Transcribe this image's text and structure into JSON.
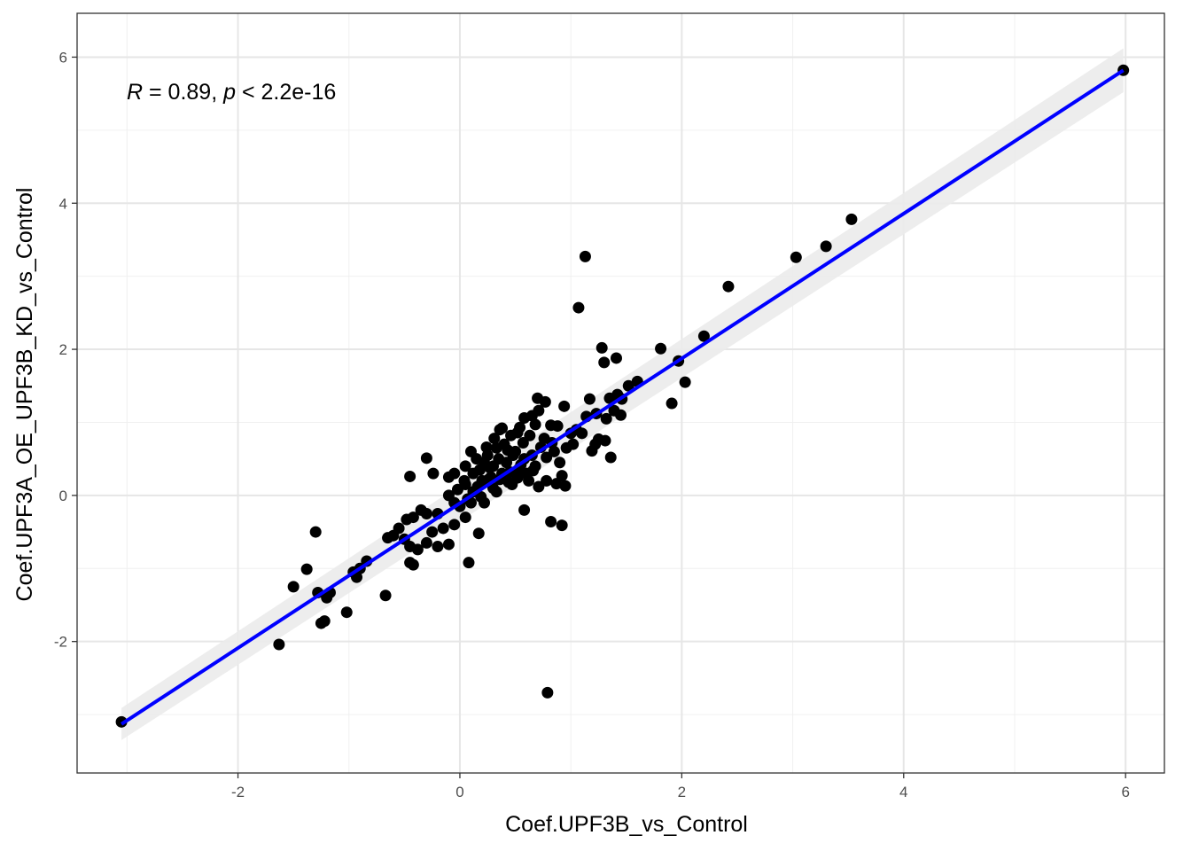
{
  "chart_data": {
    "type": "scatter",
    "xlabel": "Coef.UPF3B_vs_Control",
    "ylabel": "Coef.UPF3A_OE_UPF3B_KD_vs_Control",
    "xlim": [
      -3.45,
      6.35
    ],
    "ylim": [
      -3.8,
      6.6
    ],
    "x_ticks": [
      -2,
      0,
      2,
      4,
      6
    ],
    "y_ticks": [
      -2,
      0,
      2,
      4,
      6
    ],
    "x_tick_labels": [
      "-2",
      "0",
      "2",
      "4",
      "6"
    ],
    "y_tick_labels": [
      "-2",
      "0",
      "2",
      "4",
      "6"
    ],
    "grid": true,
    "annotation": {
      "r_symbol": "R",
      "r_text": " = 0.89, ",
      "p_symbol": "p",
      "p_text": " < 2.2e-16"
    },
    "regression": {
      "color": "#0000ff",
      "ci_color": "#ebebeb",
      "x": [
        -3.05,
        5.98
      ],
      "y": [
        -3.13,
        5.82
      ],
      "ci_halfwidth": [
        0.22,
        0.3
      ]
    },
    "point_color": "#000000",
    "points": [
      [
        5.98,
        5.82
      ],
      [
        -3.05,
        -3.1
      ],
      [
        -1.63,
        -2.04
      ],
      [
        0.79,
        -2.7
      ],
      [
        3.53,
        3.78
      ],
      [
        3.3,
        3.41
      ],
      [
        3.03,
        3.26
      ],
      [
        2.42,
        2.86
      ],
      [
        2.2,
        2.18
      ],
      [
        1.13,
        3.27
      ],
      [
        1.07,
        2.57
      ],
      [
        1.28,
        2.02
      ],
      [
        1.81,
        2.01
      ],
      [
        1.3,
        1.82
      ],
      [
        1.41,
        1.88
      ],
      [
        1.97,
        1.84
      ],
      [
        2.03,
        1.55
      ],
      [
        1.91,
        1.26
      ],
      [
        1.6,
        1.56
      ],
      [
        1.52,
        1.5
      ],
      [
        1.42,
        1.38
      ],
      [
        1.35,
        1.33
      ],
      [
        1.17,
        1.32
      ],
      [
        1.46,
        1.32
      ],
      [
        1.39,
        1.16
      ],
      [
        1.45,
        1.1
      ],
      [
        1.23,
        1.12
      ],
      [
        1.32,
        1.05
      ],
      [
        1.14,
        1.08
      ],
      [
        0.7,
        1.33
      ],
      [
        0.94,
        1.22
      ],
      [
        0.71,
        1.16
      ],
      [
        0.77,
        1.28
      ],
      [
        0.65,
        1.09
      ],
      [
        0.58,
        1.06
      ],
      [
        0.52,
        0.86
      ],
      [
        0.38,
        0.92
      ],
      [
        0.36,
        0.9
      ],
      [
        0.82,
        0.96
      ],
      [
        0.88,
        0.95
      ],
      [
        1.0,
        0.85
      ],
      [
        1.05,
        0.9
      ],
      [
        1.1,
        0.85
      ],
      [
        1.25,
        0.77
      ],
      [
        1.31,
        0.75
      ],
      [
        1.22,
        0.7
      ],
      [
        1.19,
        0.61
      ],
      [
        1.36,
        0.52
      ],
      [
        0.73,
        0.66
      ],
      [
        0.78,
        0.52
      ],
      [
        0.85,
        0.6
      ],
      [
        0.9,
        0.45
      ],
      [
        0.92,
        0.27
      ],
      [
        0.62,
        0.2
      ],
      [
        0.53,
        0.36
      ],
      [
        0.47,
        0.15
      ],
      [
        0.95,
        0.13
      ],
      [
        0.87,
        0.16
      ],
      [
        0.65,
        0.55
      ],
      [
        0.43,
        0.62
      ],
      [
        0.35,
        0.5
      ],
      [
        0.3,
        0.4
      ],
      [
        0.25,
        0.55
      ],
      [
        0.15,
        0.5
      ],
      [
        0.1,
        0.6
      ],
      [
        0.18,
        0.35
      ],
      [
        0.05,
        0.4
      ],
      [
        0.2,
        0.2
      ],
      [
        0.12,
        0.05
      ],
      [
        0.05,
        0.15
      ],
      [
        -0.05,
        0.3
      ],
      [
        -0.1,
        0.25
      ],
      [
        -0.05,
        -0.1
      ],
      [
        -0.1,
        0.0
      ],
      [
        0.0,
        -0.15
      ],
      [
        0.1,
        -0.1
      ],
      [
        0.22,
        -0.1
      ],
      [
        0.3,
        0.1
      ],
      [
        0.38,
        0.3
      ],
      [
        0.42,
        0.45
      ],
      [
        0.48,
        0.55
      ],
      [
        0.55,
        0.42
      ],
      [
        0.6,
        0.3
      ],
      [
        0.68,
        0.4
      ],
      [
        0.4,
        0.7
      ],
      [
        0.33,
        0.65
      ],
      [
        0.22,
        0.45
      ],
      [
        0.28,
        0.25
      ],
      [
        0.16,
        0.12
      ],
      [
        -0.3,
        0.51
      ],
      [
        -0.45,
        0.26
      ],
      [
        -0.24,
        0.3
      ],
      [
        -0.2,
        -0.25
      ],
      [
        -0.3,
        -0.25
      ],
      [
        -0.35,
        -0.2
      ],
      [
        -0.42,
        -0.3
      ],
      [
        -0.48,
        -0.33
      ],
      [
        -0.55,
        -0.45
      ],
      [
        -0.6,
        -0.55
      ],
      [
        -0.65,
        -0.58
      ],
      [
        -0.5,
        -0.6
      ],
      [
        -0.45,
        -0.7
      ],
      [
        -0.38,
        -0.74
      ],
      [
        -0.3,
        -0.65
      ],
      [
        -0.2,
        -0.7
      ],
      [
        -0.1,
        -0.67
      ],
      [
        -0.25,
        -0.5
      ],
      [
        -0.15,
        -0.45
      ],
      [
        -0.05,
        -0.4
      ],
      [
        0.05,
        -0.3
      ],
      [
        -0.45,
        -0.92
      ],
      [
        -0.42,
        -0.95
      ],
      [
        0.08,
        -0.92
      ],
      [
        0.17,
        -0.52
      ],
      [
        0.58,
        -0.2
      ],
      [
        0.82,
        -0.36
      ],
      [
        0.92,
        -0.41
      ],
      [
        -0.84,
        -0.9
      ],
      [
        -0.9,
        -1.0
      ],
      [
        -0.93,
        -1.12
      ],
      [
        -0.96,
        -1.05
      ],
      [
        -1.02,
        -1.6
      ],
      [
        -1.17,
        -1.33
      ],
      [
        -1.2,
        -1.4
      ],
      [
        -1.22,
        -1.72
      ],
      [
        -1.25,
        -1.75
      ],
      [
        -1.28,
        -1.33
      ],
      [
        -1.3,
        -0.5
      ],
      [
        -1.38,
        -1.01
      ],
      [
        -1.5,
        -1.25
      ],
      [
        -0.67,
        -1.37
      ],
      [
        0.26,
        0.22
      ],
      [
        0.44,
        0.18
      ],
      [
        0.33,
        0.05
      ],
      [
        0.5,
        0.6
      ],
      [
        0.57,
        0.72
      ],
      [
        0.63,
        0.82
      ],
      [
        0.76,
        0.78
      ],
      [
        0.83,
        0.72
      ],
      [
        0.96,
        0.65
      ],
      [
        1.02,
        0.7
      ],
      [
        0.66,
        0.34
      ],
      [
        0.71,
        0.12
      ],
      [
        0.78,
        0.2
      ],
      [
        0.12,
        0.3
      ],
      [
        0.04,
        0.2
      ],
      [
        -0.02,
        0.08
      ],
      [
        0.07,
        -0.05
      ],
      [
        0.19,
        -0.02
      ],
      [
        0.27,
        0.38
      ],
      [
        0.36,
        0.22
      ],
      [
        0.45,
        0.32
      ],
      [
        0.52,
        0.24
      ],
      [
        0.58,
        0.5
      ],
      [
        0.24,
        0.66
      ],
      [
        0.31,
        0.78
      ],
      [
        0.46,
        0.82
      ],
      [
        0.54,
        0.93
      ],
      [
        0.68,
        0.97
      ]
    ]
  }
}
